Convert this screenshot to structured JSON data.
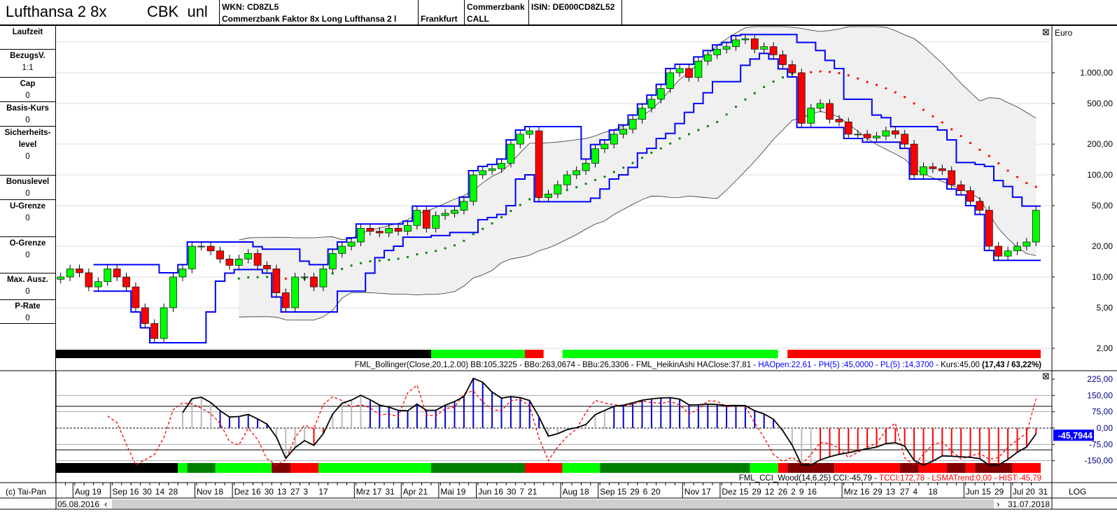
{
  "header": {
    "title": "Lufthansa 2 8x",
    "issuer_short": "CBK  unl",
    "wkn": "WKN: CD8ZL5",
    "name": "Commerzbank Faktor 8x Long Lufthansa 2 l",
    "exchange": "Frankfurt",
    "issuer": "Commerzbank",
    "type": "CALL",
    "isin": "ISIN: DE000CD8ZL52"
  },
  "left_panel": [
    {
      "label": "Laufzeit",
      "value": ""
    },
    {
      "label": "BezugsV.",
      "value": "1:1"
    },
    {
      "label": "Cap",
      "value": "0"
    },
    {
      "label": "Basis-Kurs",
      "value": "0"
    },
    {
      "label": "Sicherheits-\nlevel",
      "value": "0"
    },
    {
      "label": "Bonuslevel",
      "value": "0"
    },
    {
      "label": "U-Grenze",
      "value": "0"
    },
    {
      "label": "O-Grenze",
      "value": "0"
    },
    {
      "label": "Max. Ausz.",
      "value": "0"
    },
    {
      "label": "P-Rate",
      "value": "0"
    }
  ],
  "colors": {
    "up": "#00ff00",
    "down": "#ff0000",
    "channel": "#0000ff",
    "band": "#f0f0f0",
    "dark_green": "#008000",
    "dark_red": "#800000"
  },
  "chart_data": [
    {
      "type": "candlestick",
      "yscale": "log",
      "unit": "Euro",
      "ylim": [
        2,
        2300
      ],
      "yticks": [
        "1.000,00",
        "500,00",
        "200,00",
        "100,00",
        "50,00",
        "20,00",
        "10,00",
        "5,00",
        "2,00"
      ],
      "ytick_values": [
        1000,
        500,
        200,
        100,
        50,
        20,
        10,
        5,
        2
      ],
      "closes": [
        10,
        12,
        11,
        8,
        9,
        12,
        10,
        8,
        5,
        3.5,
        2.5,
        5,
        10,
        12,
        20,
        20,
        18,
        15,
        13,
        15,
        17,
        13,
        12,
        7,
        5,
        10,
        10,
        8,
        12,
        17,
        20,
        22,
        30,
        28,
        27,
        30,
        28,
        32,
        45,
        30,
        40,
        42,
        45,
        55,
        100,
        110,
        115,
        130,
        200,
        250,
        270,
        60,
        65,
        80,
        100,
        110,
        130,
        180,
        200,
        250,
        280,
        350,
        450,
        550,
        700,
        1000,
        1100,
        900,
        1300,
        1500,
        1700,
        1800,
        2100,
        2150,
        1700,
        1800,
        1500,
        1200,
        1000,
        320,
        450,
        500,
        350,
        330,
        250,
        250,
        230,
        240,
        270,
        250,
        200,
        100,
        120,
        115,
        110,
        80,
        70,
        55,
        45,
        20,
        16,
        18,
        20,
        22,
        45
      ],
      "first_open": 9.5,
      "trend_bar": [
        {
          "state": "black",
          "weeks": 40
        },
        {
          "state": "green",
          "weeks": 10
        },
        {
          "state": "red",
          "weeks": 2
        },
        {
          "state": "none",
          "weeks": 2
        },
        {
          "state": "green",
          "weeks": 23
        },
        {
          "state": "none",
          "weeks": 1
        },
        {
          "state": "red",
          "weeks": 27
        }
      ],
      "legend": {
        "a": "FML_Bollinger(Close,20,1,2.00) BB:105,3225 - BBo:263,0674 - BBu:26,3306 - FML_HeikinAshi HAClose:37,81 - ",
        "b": "HAOpen:22,61 - PH(5) :45,0000 - PL(5) :14,3700",
        "c": " - Kurs:45,00 ",
        "d": "(17,43 / 63,22%)"
      }
    },
    {
      "type": "line",
      "name": "CCI",
      "ylim": [
        -170,
        240
      ],
      "yticks": [
        "225,00",
        "150,00",
        "75,00",
        "0,00",
        "-75,00",
        "-150,00"
      ],
      "ytick_values": [
        225,
        150,
        75,
        0,
        -75,
        -150
      ],
      "current": "-45,7944",
      "trend_bar": [
        {
          "state": "black",
          "weeks": 13
        },
        {
          "state": "green",
          "weeks": 1
        },
        {
          "state": "dark_green",
          "weeks": 3
        },
        {
          "state": "green",
          "weeks": 6
        },
        {
          "state": "dark_red",
          "weeks": 2
        },
        {
          "state": "red",
          "weeks": 3
        },
        {
          "state": "green",
          "weeks": 12
        },
        {
          "state": "dark_green",
          "weeks": 10
        },
        {
          "state": "red",
          "weeks": 4
        },
        {
          "state": "green",
          "weeks": 4
        },
        {
          "state": "dark_green",
          "weeks": 16
        },
        {
          "state": "green",
          "weeks": 3
        },
        {
          "state": "red",
          "weeks": 1
        },
        {
          "state": "dark_red",
          "weeks": 5
        },
        {
          "state": "red",
          "weeks": 7
        },
        {
          "state": "dark_red",
          "weeks": 2
        },
        {
          "state": "red",
          "weeks": 3
        },
        {
          "state": "dark_red",
          "weeks": 2
        },
        {
          "state": "red",
          "weeks": 1
        },
        {
          "state": "dark_red",
          "weeks": 4
        },
        {
          "state": "red",
          "weeks": 3
        }
      ],
      "legend": {
        "a": "FML_CCI_Wood(14,6,25) CCI:-45,79 - ",
        "b": "TCCI:172,78 - LSMATrend:0,00 - HIST:-45,79"
      }
    }
  ],
  "xaxis": {
    "start": "05.08.2016",
    "end": "31.07.2018",
    "ticks": [
      {
        "label": "Aug 19",
        "date": "2016-08-19",
        "month": true
      },
      {
        "label": "Sep 16",
        "date": "2016-09-16",
        "month": true
      },
      {
        "label": "30",
        "date": "2016-09-30"
      },
      {
        "label": "14",
        "date": "2016-10-14"
      },
      {
        "label": "28",
        "date": "2016-10-28"
      },
      {
        "label": "Nov 18",
        "date": "2016-11-18",
        "month": true
      },
      {
        "label": "Dez 16",
        "date": "2016-12-16",
        "month": true
      },
      {
        "label": "30",
        "date": "2016-12-30"
      },
      {
        "label": "13",
        "date": "2017-01-13"
      },
      {
        "label": "27",
        "date": "2017-01-27"
      },
      {
        "label": "3",
        "date": "2017-02-03"
      },
      {
        "label": "17",
        "date": "2017-02-17"
      },
      {
        "label": "Mrz 17",
        "date": "2017-03-17",
        "month": true
      },
      {
        "label": "31",
        "date": "2017-03-31"
      },
      {
        "label": "Apr 21",
        "date": "2017-04-21",
        "month": true
      },
      {
        "label": "Mai 19",
        "date": "2017-05-19",
        "month": true
      },
      {
        "label": "Jun 16",
        "date": "2017-06-16",
        "month": true
      },
      {
        "label": "30",
        "date": "2017-06-30"
      },
      {
        "label": "7",
        "date": "2017-07-07"
      },
      {
        "label": "21",
        "date": "2017-07-21"
      },
      {
        "label": "Aug 18",
        "date": "2017-08-18",
        "month": true
      },
      {
        "label": "Sep 15",
        "date": "2017-09-15",
        "month": true
      },
      {
        "label": "29",
        "date": "2017-09-29"
      },
      {
        "label": "6",
        "date": "2017-10-06"
      },
      {
        "label": "20",
        "date": "2017-10-20"
      },
      {
        "label": "Nov 17",
        "date": "2017-11-17",
        "month": true
      },
      {
        "label": "Dez 15",
        "date": "2017-12-15",
        "month": true
      },
      {
        "label": "29",
        "date": "2017-12-29"
      },
      {
        "label": "12",
        "date": "2018-01-12"
      },
      {
        "label": "26",
        "date": "2018-01-26"
      },
      {
        "label": "2",
        "date": "2018-02-02"
      },
      {
        "label": "9",
        "date": "2018-02-09"
      },
      {
        "label": "16",
        "date": "2018-02-16"
      },
      {
        "label": "Mrz 16",
        "date": "2018-03-16",
        "month": true
      },
      {
        "label": "29",
        "date": "2018-03-29"
      },
      {
        "label": "13",
        "date": "2018-04-13"
      },
      {
        "label": "27",
        "date": "2018-04-27"
      },
      {
        "label": "4",
        "date": "2018-05-04"
      },
      {
        "label": "18",
        "date": "2018-05-18"
      },
      {
        "label": "Jun 15",
        "date": "2018-06-15",
        "month": true
      },
      {
        "label": "29",
        "date": "2018-06-29"
      },
      {
        "label": "Jul 20",
        "date": "2018-07-20",
        "month": true
      },
      {
        "label": "31",
        "date": "2018-07-31"
      }
    ]
  },
  "footer": {
    "copyright": "(c) Tai-Pan",
    "scale_mode": "LOG",
    "scroll_left": "‹",
    "scroll_right": "›",
    "close": "⊠"
  }
}
